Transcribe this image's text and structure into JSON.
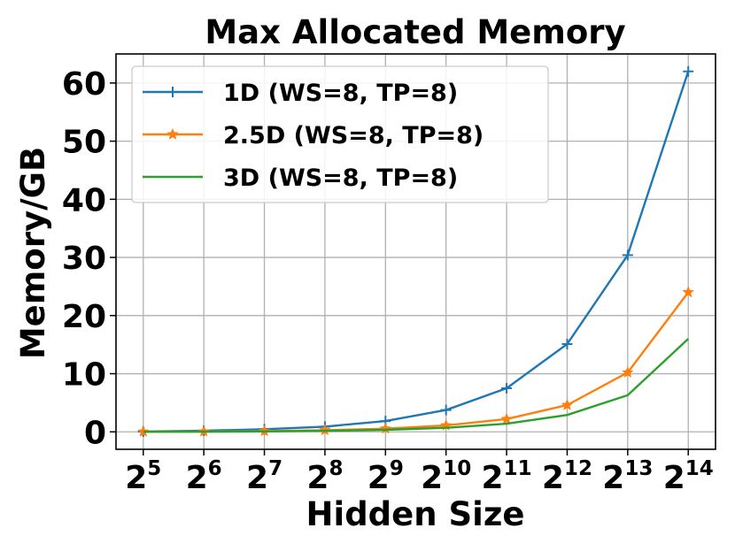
{
  "chart_data": {
    "type": "line",
    "title": "Max Allocated Memory",
    "xlabel": "Hidden Size",
    "ylabel": "Memory/GB",
    "x_scale": "log2",
    "x": [
      32,
      64,
      128,
      256,
      512,
      1024,
      2048,
      4096,
      8192,
      16384
    ],
    "x_tick_labels": [
      {
        "base": "2",
        "exp": "5"
      },
      {
        "base": "2",
        "exp": "6"
      },
      {
        "base": "2",
        "exp": "7"
      },
      {
        "base": "2",
        "exp": "8"
      },
      {
        "base": "2",
        "exp": "9"
      },
      {
        "base": "2",
        "exp": "10"
      },
      {
        "base": "2",
        "exp": "11"
      },
      {
        "base": "2",
        "exp": "12"
      },
      {
        "base": "2",
        "exp": "13"
      },
      {
        "base": "2",
        "exp": "14"
      }
    ],
    "y_ticks": [
      0,
      10,
      20,
      30,
      40,
      50,
      60
    ],
    "ylim": [
      -3,
      65
    ],
    "grid": true,
    "legend_position": "top-left",
    "series": [
      {
        "name": "1D (WS=8, TP=8)",
        "color": "#1f77b4",
        "marker": "plus",
        "values": [
          0.05,
          0.2,
          0.45,
          0.9,
          1.85,
          3.75,
          7.5,
          15.1,
          30.4,
          62.0
        ]
      },
      {
        "name": "2.5D (WS=8, TP=8)",
        "color": "#ff7f0e",
        "marker": "star",
        "values": [
          0.02,
          0.05,
          0.12,
          0.28,
          0.55,
          1.1,
          2.2,
          4.6,
          10.2,
          24.0
        ]
      },
      {
        "name": "3D (WS=8, TP=8)",
        "color": "#2ca02c",
        "marker": "none",
        "values": [
          0.01,
          0.03,
          0.08,
          0.18,
          0.35,
          0.7,
          1.4,
          2.9,
          6.3,
          16.0
        ]
      }
    ]
  }
}
